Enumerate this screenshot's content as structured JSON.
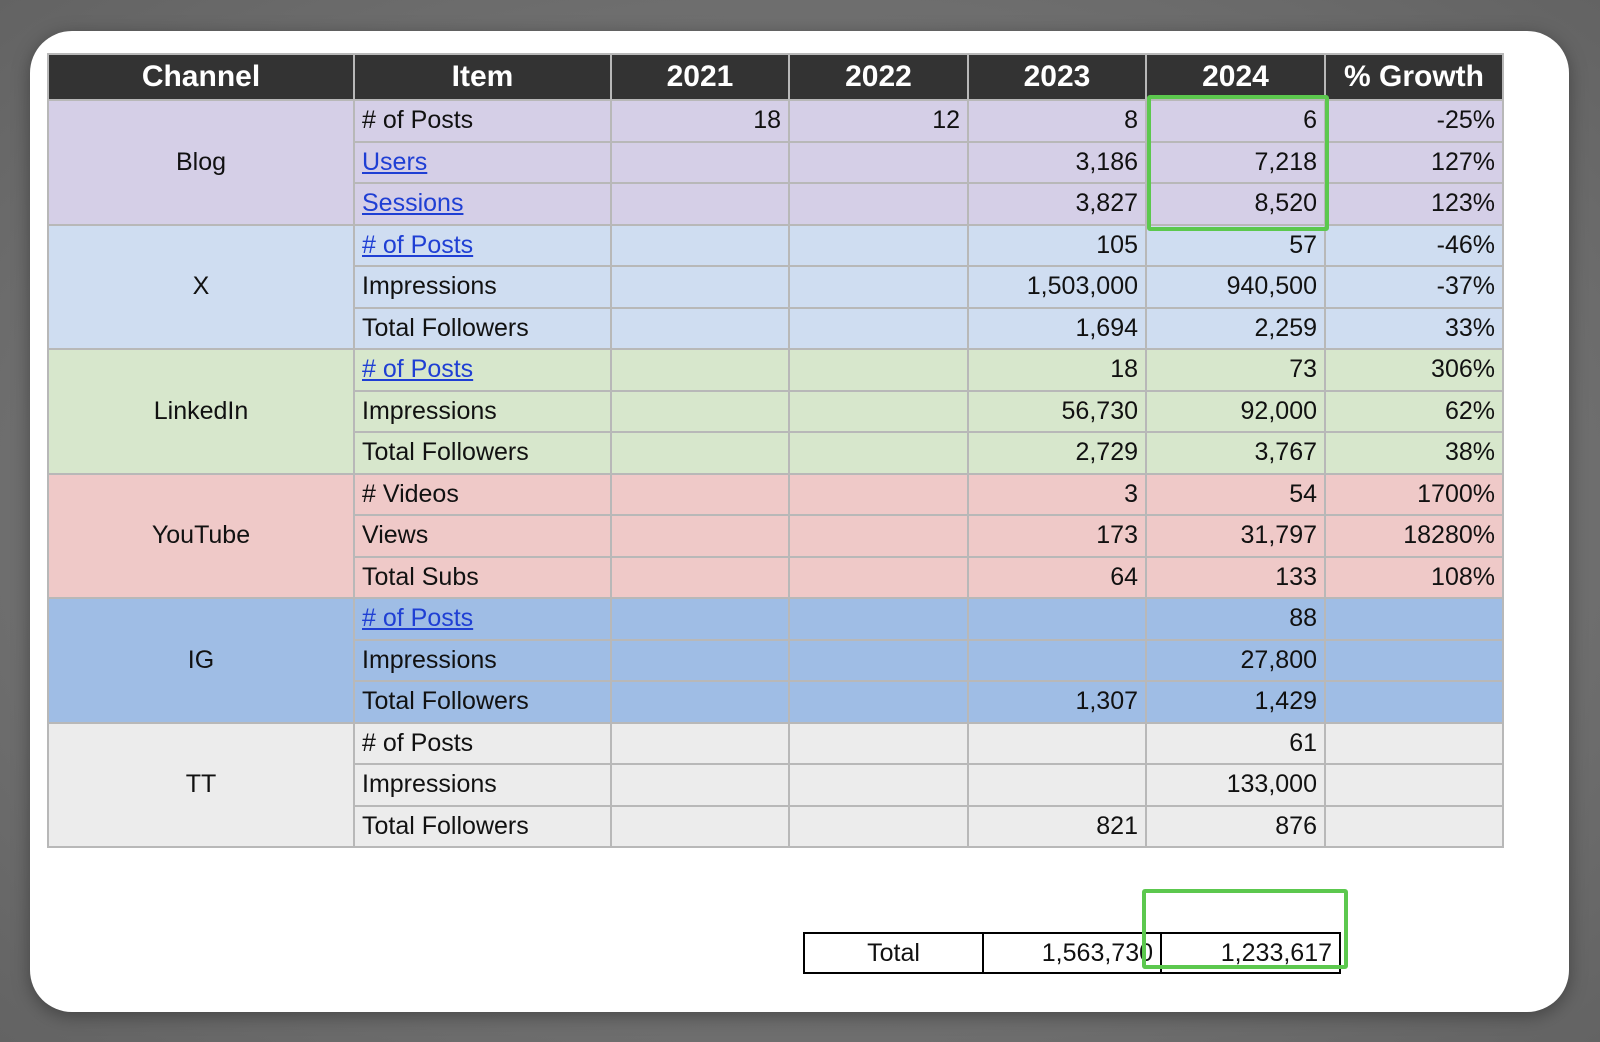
{
  "headers": [
    "Channel",
    "Item",
    "2021",
    "2022",
    "2023",
    "2024",
    "% Growth"
  ],
  "groups": [
    {
      "key": "blog",
      "channel": "Blog",
      "rows": [
        {
          "item": "# of Posts",
          "link": false,
          "y2021": "18",
          "y2022": "12",
          "y2023": "8",
          "y2024": "6",
          "growth": "-25%"
        },
        {
          "item": "Users ",
          "link": true,
          "y2021": "",
          "y2022": "",
          "y2023": "3,186",
          "y2024": "7,218",
          "growth": "127%"
        },
        {
          "item": "Sessions",
          "link": true,
          "y2021": "",
          "y2022": "",
          "y2023": "3,827",
          "y2024": "8,520",
          "growth": "123%"
        }
      ]
    },
    {
      "key": "x",
      "channel": "X",
      "rows": [
        {
          "item": "# of Posts",
          "link": true,
          "y2021": "",
          "y2022": "",
          "y2023": "105",
          "y2024": "57",
          "growth": "-46%"
        },
        {
          "item": "Impressions",
          "link": false,
          "y2021": "",
          "y2022": "",
          "y2023": "1,503,000",
          "y2024": "940,500",
          "growth": "-37%"
        },
        {
          "item": "Total Followers",
          "link": false,
          "y2021": "",
          "y2022": "",
          "y2023": "1,694",
          "y2024": "2,259",
          "growth": "33%"
        }
      ]
    },
    {
      "key": "linkedin",
      "channel": "LinkedIn",
      "rows": [
        {
          "item": "# of Posts",
          "link": true,
          "y2021": "",
          "y2022": "",
          "y2023": "18",
          "y2024": "73",
          "growth": "306%"
        },
        {
          "item": "Impressions",
          "link": false,
          "y2021": "",
          "y2022": "",
          "y2023": "56,730",
          "y2024": "92,000",
          "growth": "62%"
        },
        {
          "item": "Total Followers",
          "link": false,
          "y2021": "",
          "y2022": "",
          "y2023": "2,729",
          "y2024": "3,767",
          "growth": "38%"
        }
      ]
    },
    {
      "key": "youtube",
      "channel": "YouTube",
      "rows": [
        {
          "item": "# Videos",
          "link": false,
          "y2021": "",
          "y2022": "",
          "y2023": "3",
          "y2024": "54",
          "growth": "1700%"
        },
        {
          "item": "Views",
          "link": false,
          "y2021": "",
          "y2022": "",
          "y2023": "173",
          "y2024": "31,797",
          "growth": "18280%"
        },
        {
          "item": "Total Subs",
          "link": false,
          "y2021": "",
          "y2022": "",
          "y2023": "64",
          "y2024": "133",
          "growth": "108%"
        }
      ]
    },
    {
      "key": "ig",
      "channel": "IG",
      "rows": [
        {
          "item": "# of Posts",
          "link": true,
          "y2021": "",
          "y2022": "",
          "y2023": "",
          "y2024": "88",
          "growth": ""
        },
        {
          "item": "Impressions",
          "link": false,
          "y2021": "",
          "y2022": "",
          "y2023": "",
          "y2024": "27,800",
          "growth": ""
        },
        {
          "item": "Total Followers",
          "link": false,
          "y2021": "",
          "y2022": "",
          "y2023": "1,307",
          "y2024": "1,429",
          "growth": ""
        }
      ]
    },
    {
      "key": "tt",
      "channel": "TT",
      "rows": [
        {
          "item": "# of Posts",
          "link": false,
          "y2021": "",
          "y2022": "",
          "y2023": "",
          "y2024": "61",
          "growth": ""
        },
        {
          "item": "Impressions",
          "link": false,
          "y2021": "",
          "y2022": "",
          "y2023": "",
          "y2024": "133,000",
          "growth": ""
        },
        {
          "item": "Total Followers",
          "link": false,
          "y2021": "",
          "y2022": "",
          "y2023": "821",
          "y2024": "876",
          "growth": ""
        }
      ]
    }
  ],
  "totals": {
    "label": "Total",
    "y2023": "1,563,730",
    "y2024": "1,233,617"
  },
  "colors": {
    "header_bg": "#333333",
    "blog": "#d5cfe7",
    "x": "#cfddf1",
    "linkedin": "#d7e7cc",
    "youtube": "#efc9c8",
    "ig": "#9fbde5",
    "tt": "#ececec",
    "highlight": "#5cc84e",
    "link": "#1f3fd4"
  }
}
